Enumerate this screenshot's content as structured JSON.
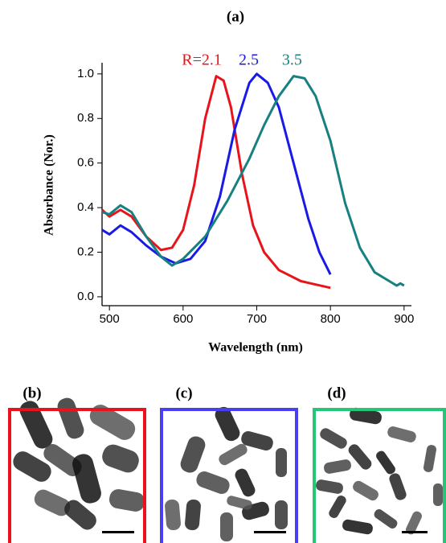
{
  "chart_data": {
    "type": "line",
    "title": "(a)",
    "x_label": "Wavelength (nm)",
    "y_label": "Absorbance (Nor.)",
    "xlim": [
      490,
      910
    ],
    "ylim": [
      -0.04,
      1.05
    ],
    "xticks": [
      500,
      600,
      700,
      800,
      900
    ],
    "yticks": [
      {
        "value": 0,
        "label": "0.0"
      },
      0.2,
      0.4,
      0.6,
      0.8,
      {
        "value": 1,
        "label": "1.0"
      }
    ],
    "series": [
      {
        "name": "R=2.1",
        "color": "#e8141c",
        "x": [
          490,
          500,
          515,
          530,
          550,
          570,
          585,
          600,
          615,
          630,
          645,
          655,
          665,
          680,
          695,
          710,
          730,
          760,
          800
        ],
        "values": [
          0.39,
          0.36,
          0.39,
          0.36,
          0.27,
          0.21,
          0.22,
          0.3,
          0.5,
          0.8,
          0.99,
          0.97,
          0.85,
          0.55,
          0.32,
          0.2,
          0.12,
          0.07,
          0.04
        ]
      },
      {
        "name": "2.5",
        "color": "#1a1ae6",
        "x": [
          490,
          500,
          515,
          530,
          550,
          570,
          590,
          610,
          630,
          650,
          670,
          690,
          700,
          715,
          730,
          750,
          770,
          785,
          800
        ],
        "values": [
          0.3,
          0.28,
          0.32,
          0.29,
          0.23,
          0.18,
          0.15,
          0.17,
          0.25,
          0.45,
          0.75,
          0.96,
          1.0,
          0.96,
          0.85,
          0.6,
          0.35,
          0.2,
          0.1
        ]
      },
      {
        "name": "3.5",
        "color": "#178080",
        "x": [
          490,
          500,
          515,
          530,
          550,
          570,
          585,
          600,
          630,
          660,
          690,
          710,
          730,
          750,
          765,
          780,
          800,
          820,
          840,
          860,
          880,
          890,
          895,
          900
        ],
        "values": [
          0.38,
          0.37,
          0.41,
          0.38,
          0.27,
          0.18,
          0.14,
          0.17,
          0.27,
          0.43,
          0.62,
          0.77,
          0.9,
          0.99,
          0.98,
          0.9,
          0.7,
          0.42,
          0.22,
          0.11,
          0.07,
          0.05,
          0.06,
          0.05
        ]
      }
    ]
  },
  "panels": [
    {
      "label": "(b)",
      "color": "#e8141c"
    },
    {
      "label": "(c)",
      "color": "#4a3ff0"
    },
    {
      "label": "(d)",
      "color": "#22c878"
    }
  ]
}
